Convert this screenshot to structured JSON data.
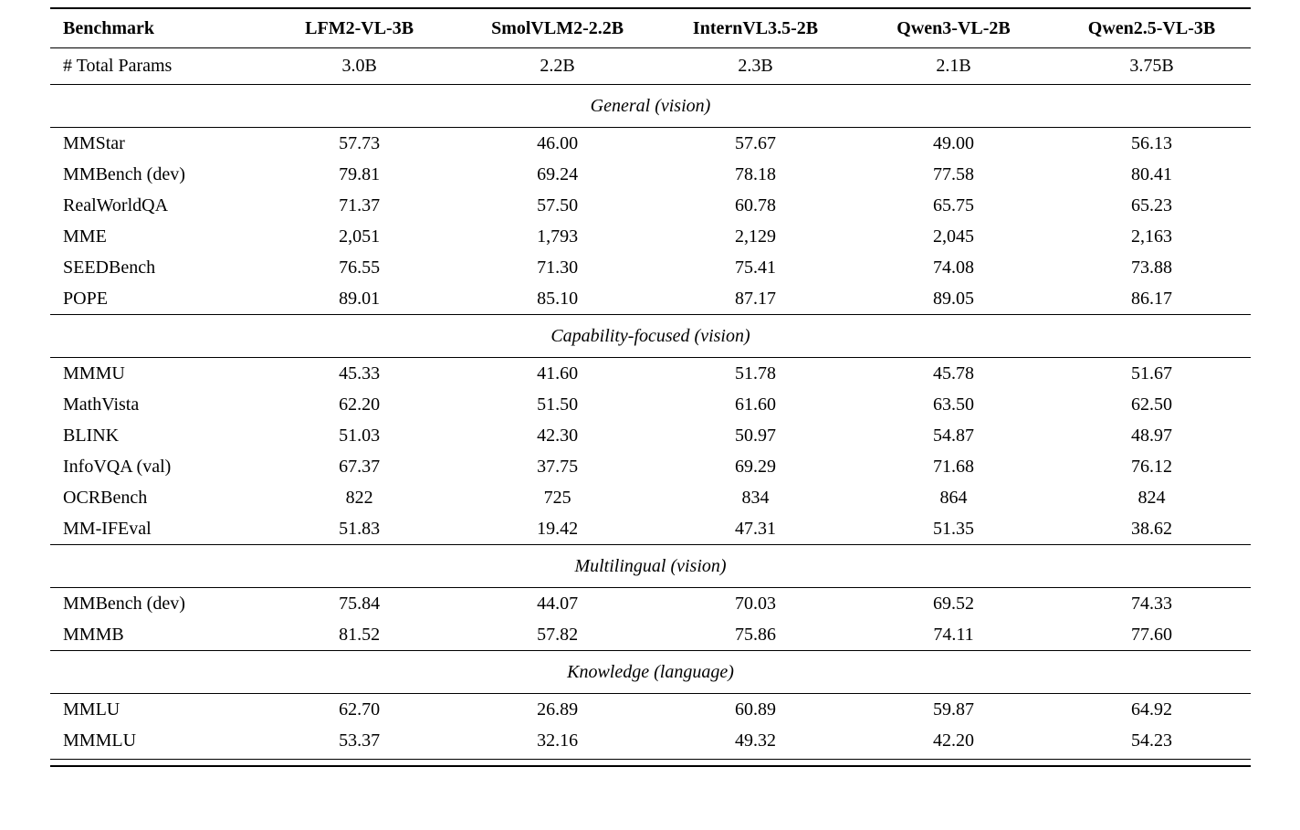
{
  "table": {
    "columns": [
      "Benchmark",
      "LFM2-VL-3B",
      "SmolVLM2-2.2B",
      "InternVL3.5-2B",
      "Qwen3-VL-2B",
      "Qwen2.5-VL-3B"
    ],
    "params_row": {
      "label": "# Total Params",
      "values": [
        "3.0B",
        "2.2B",
        "2.3B",
        "2.1B",
        "3.75B"
      ]
    },
    "sections": [
      {
        "title": "General (vision)",
        "rows": [
          {
            "label": "MMStar",
            "values": [
              "57.73",
              "46.00",
              "57.67",
              "49.00",
              "56.13"
            ]
          },
          {
            "label": "MMBench (dev)",
            "values": [
              "79.81",
              "69.24",
              "78.18",
              "77.58",
              "80.41"
            ]
          },
          {
            "label": "RealWorldQA",
            "values": [
              "71.37",
              "57.50",
              "60.78",
              "65.75",
              "65.23"
            ]
          },
          {
            "label": "MME",
            "values": [
              "2,051",
              "1,793",
              "2,129",
              "2,045",
              "2,163"
            ]
          },
          {
            "label": "SEEDBench",
            "values": [
              "76.55",
              "71.30",
              "75.41",
              "74.08",
              "73.88"
            ]
          },
          {
            "label": "POPE",
            "values": [
              "89.01",
              "85.10",
              "87.17",
              "89.05",
              "86.17"
            ]
          }
        ]
      },
      {
        "title": "Capability-focused (vision)",
        "rows": [
          {
            "label": "MMMU",
            "values": [
              "45.33",
              "41.60",
              "51.78",
              "45.78",
              "51.67"
            ]
          },
          {
            "label": "MathVista",
            "values": [
              "62.20",
              "51.50",
              "61.60",
              "63.50",
              "62.50"
            ]
          },
          {
            "label": "BLINK",
            "values": [
              "51.03",
              "42.30",
              "50.97",
              "54.87",
              "48.97"
            ]
          },
          {
            "label": "InfoVQA (val)",
            "values": [
              "67.37",
              "37.75",
              "69.29",
              "71.68",
              "76.12"
            ]
          },
          {
            "label": "OCRBench",
            "values": [
              "822",
              "725",
              "834",
              "864",
              "824"
            ]
          },
          {
            "label": "MM-IFEval",
            "values": [
              "51.83",
              "19.42",
              "47.31",
              "51.35",
              "38.62"
            ]
          }
        ]
      },
      {
        "title": "Multilingual (vision)",
        "rows": [
          {
            "label": "MMBench (dev)",
            "values": [
              "75.84",
              "44.07",
              "70.03",
              "69.52",
              "74.33"
            ]
          },
          {
            "label": "MMMB",
            "values": [
              "81.52",
              "57.82",
              "75.86",
              "74.11",
              "77.60"
            ]
          }
        ]
      },
      {
        "title": "Knowledge (language)",
        "rows": [
          {
            "label": "MMLU",
            "values": [
              "62.70",
              "26.89",
              "60.89",
              "59.87",
              "64.92"
            ]
          },
          {
            "label": "MMMLU",
            "values": [
              "53.37",
              "32.16",
              "49.32",
              "42.20",
              "54.23"
            ]
          }
        ]
      }
    ]
  }
}
